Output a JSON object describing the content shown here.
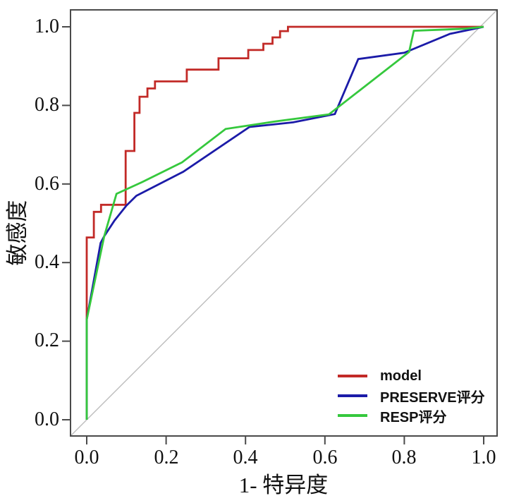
{
  "chart_data": {
    "type": "line",
    "subtype": "roc-curve",
    "title": "",
    "xlabel": "1- 特异度",
    "ylabel": "敏感度",
    "xlim": [
      0.0,
      1.0
    ],
    "ylim": [
      0.0,
      1.0
    ],
    "grid": false,
    "diagonal_reference": true,
    "x_ticks": [
      0.0,
      0.2,
      0.4,
      0.6,
      0.8,
      1.0
    ],
    "x_tick_labels": [
      "0.0",
      "0.2",
      "0.4",
      "0.6",
      "0.8",
      "1.0"
    ],
    "y_ticks": [
      0.0,
      0.2,
      0.4,
      0.6,
      0.8,
      1.0
    ],
    "y_tick_labels": [
      "0.0",
      "0.2",
      "0.4",
      "0.6",
      "0.8",
      "1.0"
    ],
    "legend_position": "bottom-right-inside",
    "colors": {
      "axis_frame": "#4a4a4a",
      "diagonal_reference": "#bdbdbd",
      "model": "#c22a27",
      "preserve": "#1b1ba8",
      "resp": "#35c83d"
    },
    "series": [
      {
        "name": "model",
        "color": "#c22a27",
        "points": [
          [
            0,
            0
          ],
          [
            0,
            0.464
          ],
          [
            0.018,
            0.464
          ],
          [
            0.018,
            0.529
          ],
          [
            0.036,
            0.529
          ],
          [
            0.036,
            0.547
          ],
          [
            0.098,
            0.547
          ],
          [
            0.098,
            0.684
          ],
          [
            0.12,
            0.684
          ],
          [
            0.12,
            0.781
          ],
          [
            0.133,
            0.781
          ],
          [
            0.133,
            0.822
          ],
          [
            0.153,
            0.822
          ],
          [
            0.153,
            0.843
          ],
          [
            0.172,
            0.843
          ],
          [
            0.172,
            0.861
          ],
          [
            0.252,
            0.861
          ],
          [
            0.252,
            0.891
          ],
          [
            0.332,
            0.891
          ],
          [
            0.332,
            0.92
          ],
          [
            0.407,
            0.92
          ],
          [
            0.407,
            0.941
          ],
          [
            0.445,
            0.941
          ],
          [
            0.445,
            0.957
          ],
          [
            0.468,
            0.957
          ],
          [
            0.468,
            0.973
          ],
          [
            0.487,
            0.973
          ],
          [
            0.487,
            0.989
          ],
          [
            0.507,
            0.989
          ],
          [
            0.507,
            1
          ],
          [
            1,
            1
          ]
        ]
      },
      {
        "name": "PRESERVE评分",
        "color": "#1b1ba8",
        "points": [
          [
            0,
            0
          ],
          [
            0,
            0.255
          ],
          [
            0.035,
            0.45
          ],
          [
            0.044,
            0.467
          ],
          [
            0.07,
            0.507
          ],
          [
            0.1,
            0.545
          ],
          [
            0.125,
            0.57
          ],
          [
            0.243,
            0.631
          ],
          [
            0.41,
            0.745
          ],
          [
            0.52,
            0.757
          ],
          [
            0.625,
            0.778
          ],
          [
            0.684,
            0.918
          ],
          [
            0.8,
            0.934
          ],
          [
            0.915,
            0.982
          ],
          [
            1,
            1
          ]
        ]
      },
      {
        "name": "RESP评分",
        "color": "#35c83d",
        "points": [
          [
            0,
            0
          ],
          [
            0,
            0.255
          ],
          [
            0.044,
            0.467
          ],
          [
            0.075,
            0.575
          ],
          [
            0.14,
            0.605
          ],
          [
            0.24,
            0.655
          ],
          [
            0.35,
            0.74
          ],
          [
            0.48,
            0.76
          ],
          [
            0.61,
            0.777
          ],
          [
            0.812,
            0.936
          ],
          [
            0.824,
            0.99
          ],
          [
            0.95,
            0.995
          ],
          [
            1,
            1
          ]
        ]
      }
    ]
  }
}
